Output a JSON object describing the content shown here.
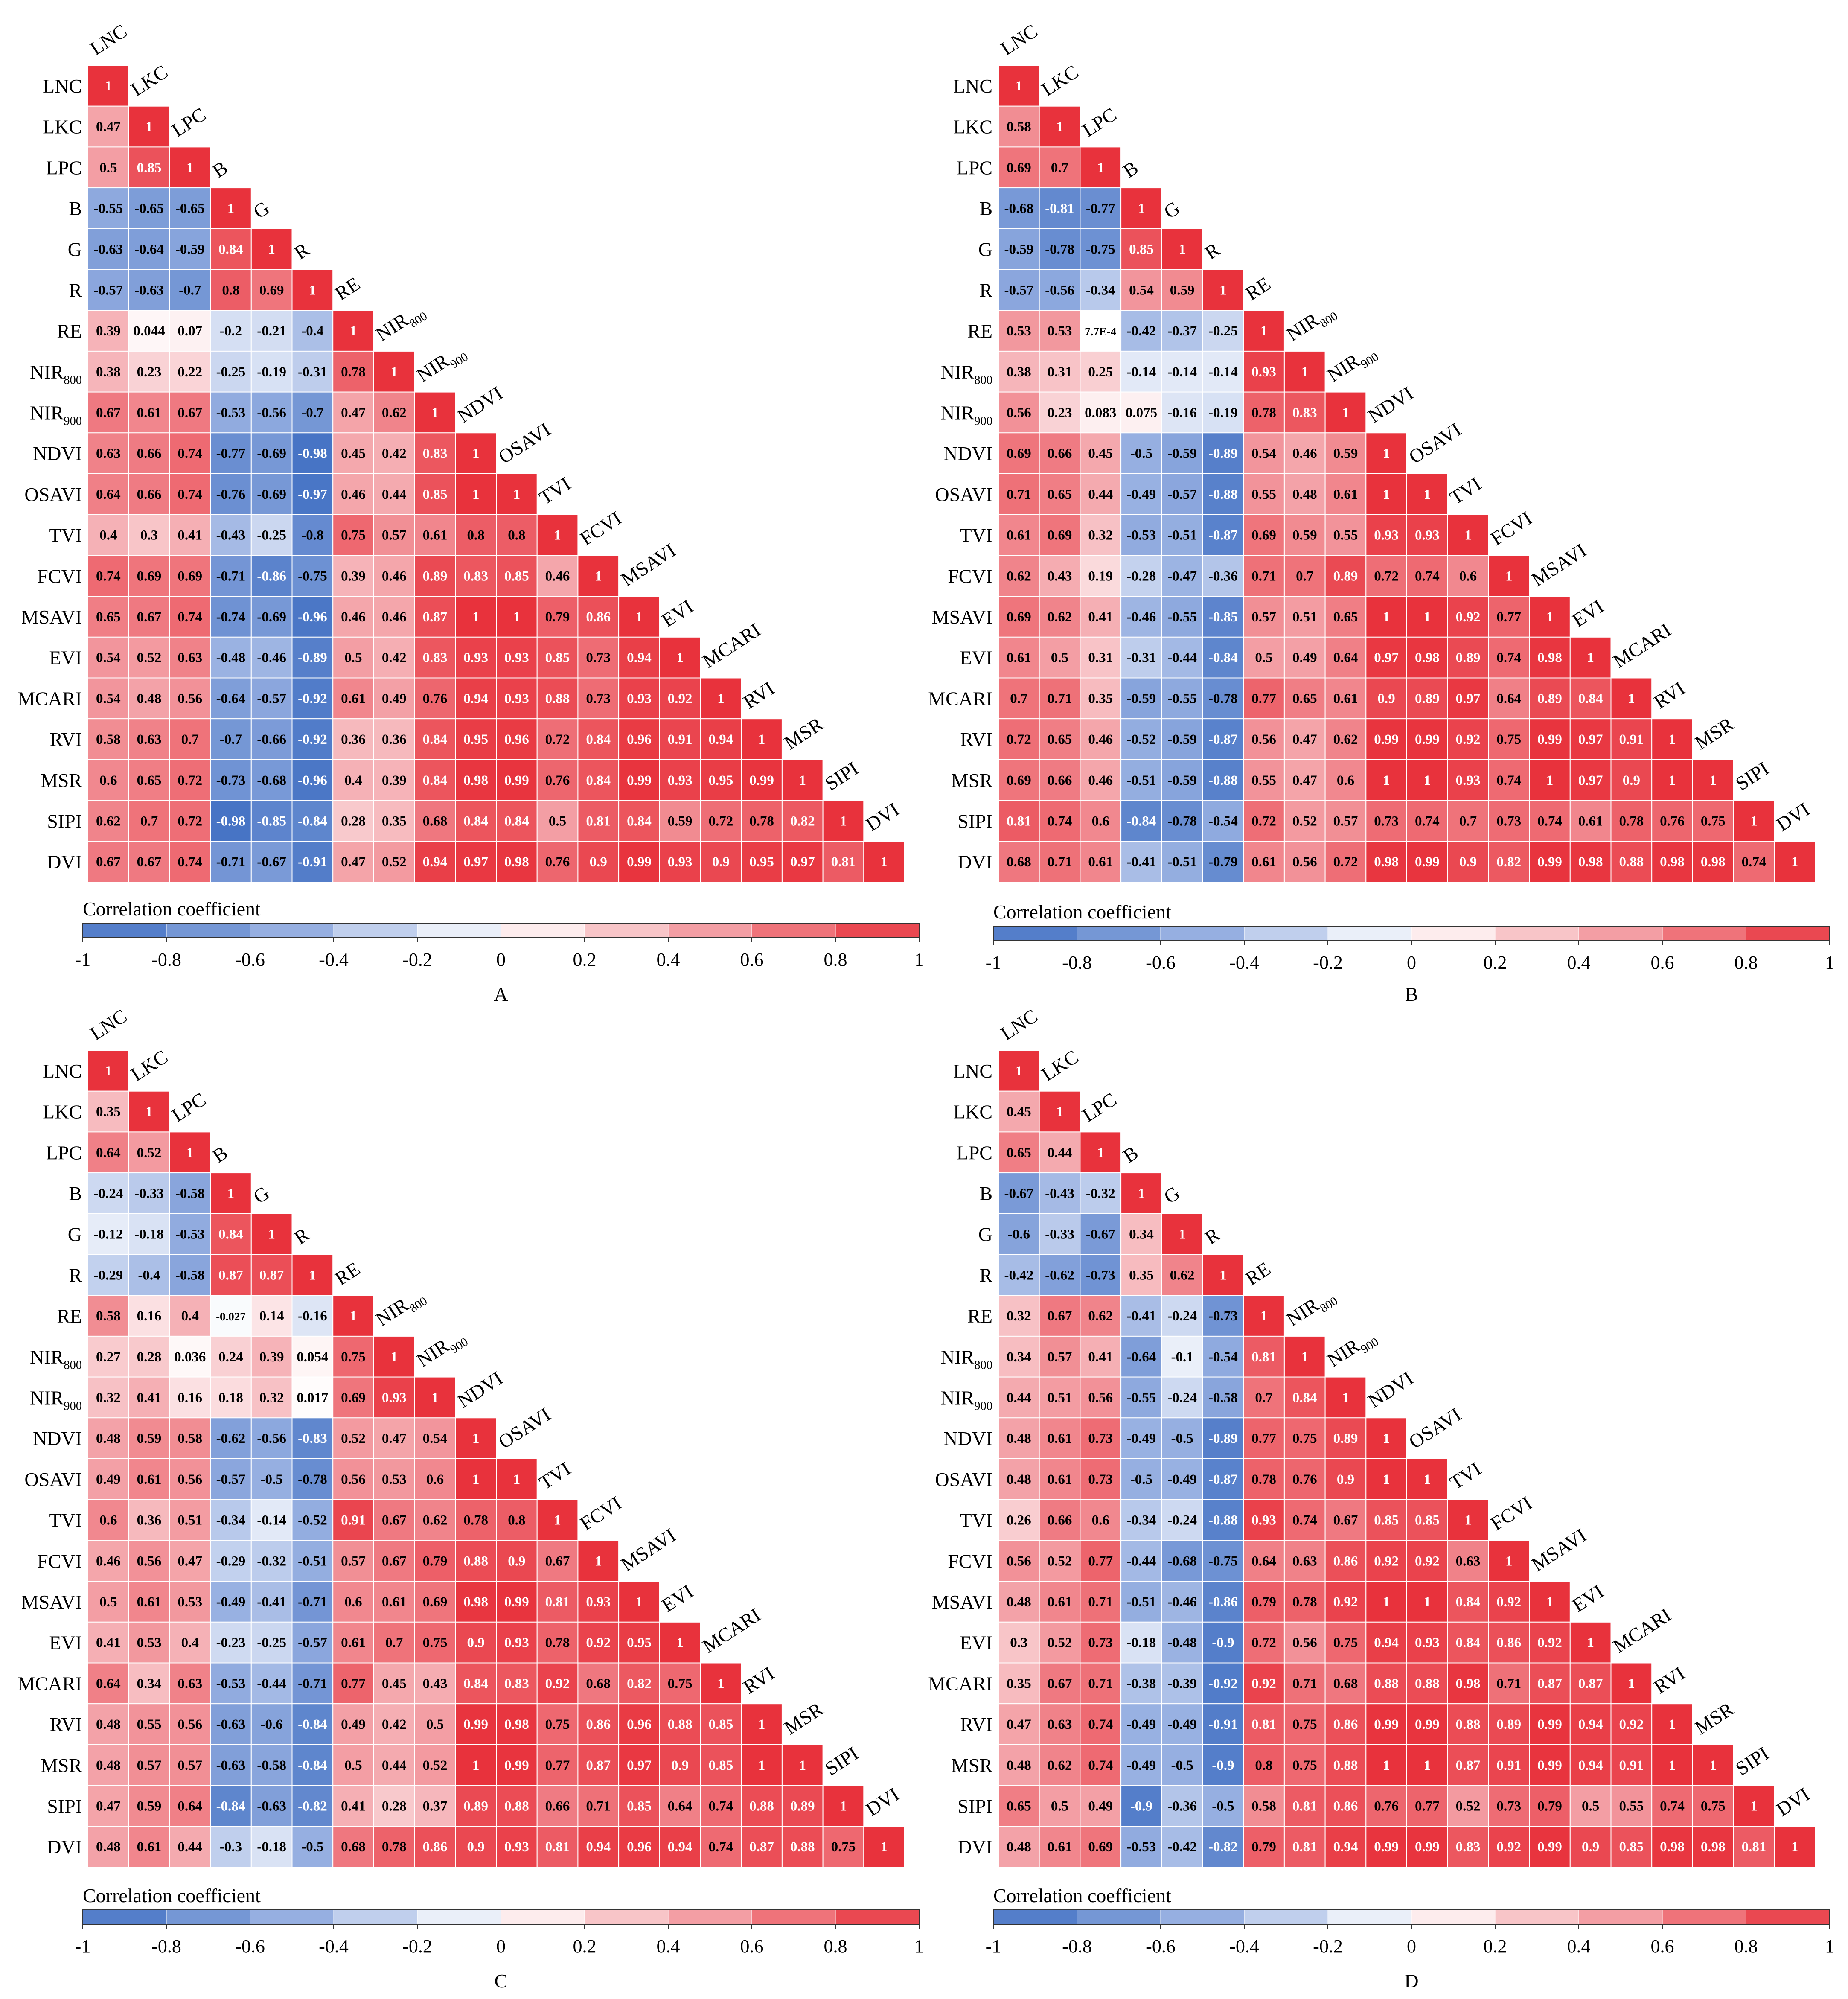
{
  "labels": [
    "LNC",
    "LKC",
    "LPC",
    "B",
    "G",
    "R",
    "RE",
    "NIR800",
    "NIR900",
    "NDVI",
    "OSAVI",
    "TVI",
    "FCVI",
    "MSAVI",
    "EVI",
    "MCARI",
    "RVI",
    "MSR",
    "SIPI",
    "DVI"
  ],
  "label_display": {
    "LNC": {
      "main": "LNC",
      "sub": ""
    },
    "LKC": {
      "main": "LKC",
      "sub": ""
    },
    "LPC": {
      "main": "LPC",
      "sub": ""
    },
    "B": {
      "main": "B",
      "sub": ""
    },
    "G": {
      "main": "G",
      "sub": ""
    },
    "R": {
      "main": "R",
      "sub": ""
    },
    "RE": {
      "main": "RE",
      "sub": ""
    },
    "NIR800": {
      "main": "NIR",
      "sub": "800"
    },
    "NIR900": {
      "main": "NIR",
      "sub": "900"
    },
    "NDVI": {
      "main": "NDVI",
      "sub": ""
    },
    "OSAVI": {
      "main": "OSAVI",
      "sub": ""
    },
    "TVI": {
      "main": "TVI",
      "sub": ""
    },
    "FCVI": {
      "main": "FCVI",
      "sub": ""
    },
    "MSAVI": {
      "main": "MSAVI",
      "sub": ""
    },
    "EVI": {
      "main": "EVI",
      "sub": ""
    },
    "MCARI": {
      "main": "MCARI",
      "sub": ""
    },
    "RVI": {
      "main": "RVI",
      "sub": ""
    },
    "MSR": {
      "main": "MSR",
      "sub": ""
    },
    "SIPI": {
      "main": "SIPI",
      "sub": ""
    },
    "DVI": {
      "main": "DVI",
      "sub": ""
    }
  },
  "colorbar": {
    "title": "Correlation coefficient",
    "ticks": [
      "-1",
      "-0.8",
      "-0.6",
      "-0.4",
      "-0.2",
      "0",
      "0.2",
      "0.4",
      "0.6",
      "0.8",
      "1"
    ],
    "colors": [
      "#4472c4",
      "#6b8fd4",
      "#92abdf",
      "#b8c9ea",
      "#dbe4f4",
      "#ffffff",
      "#fad4d7",
      "#f5aaaf",
      "#f17f87",
      "#ed555f",
      "#e8323c"
    ]
  },
  "chart_data": [
    {
      "type": "heatmap",
      "panel": "A",
      "rows": [
        [
          "1"
        ],
        [
          "0.47",
          "1"
        ],
        [
          "0.5",
          "0.85",
          "1"
        ],
        [
          "-0.55",
          "-0.65",
          "-0.65",
          "1"
        ],
        [
          "-0.63",
          "-0.64",
          "-0.59",
          "0.84",
          "1"
        ],
        [
          "-0.57",
          "-0.63",
          "-0.7",
          "0.8",
          "0.69",
          "1"
        ],
        [
          "0.39",
          "0.044",
          "0.07",
          "-0.2",
          "-0.21",
          "-0.4",
          "1"
        ],
        [
          "0.38",
          "0.23",
          "0.22",
          "-0.25",
          "-0.19",
          "-0.31",
          "0.78",
          "1"
        ],
        [
          "0.67",
          "0.61",
          "0.67",
          "-0.53",
          "-0.56",
          "-0.7",
          "0.47",
          "0.62",
          "1"
        ],
        [
          "0.63",
          "0.66",
          "0.74",
          "-0.77",
          "-0.69",
          "-0.98",
          "0.45",
          "0.42",
          "0.83",
          "1"
        ],
        [
          "0.64",
          "0.66",
          "0.74",
          "-0.76",
          "-0.69",
          "-0.97",
          "0.46",
          "0.44",
          "0.85",
          "1",
          "1"
        ],
        [
          "0.4",
          "0.3",
          "0.41",
          "-0.43",
          "-0.25",
          "-0.8",
          "0.75",
          "0.57",
          "0.61",
          "0.8",
          "0.8",
          "1"
        ],
        [
          "0.74",
          "0.69",
          "0.69",
          "-0.71",
          "-0.86",
          "-0.75",
          "0.39",
          "0.46",
          "0.89",
          "0.83",
          "0.85",
          "0.46",
          "1"
        ],
        [
          "0.65",
          "0.67",
          "0.74",
          "-0.74",
          "-0.69",
          "-0.96",
          "0.46",
          "0.46",
          "0.87",
          "1",
          "1",
          "0.79",
          "0.86",
          "1"
        ],
        [
          "0.54",
          "0.52",
          "0.63",
          "-0.48",
          "-0.46",
          "-0.89",
          "0.5",
          "0.42",
          "0.83",
          "0.93",
          "0.93",
          "0.85",
          "0.73",
          "0.94",
          "1"
        ],
        [
          "0.54",
          "0.48",
          "0.56",
          "-0.64",
          "-0.57",
          "-0.92",
          "0.61",
          "0.49",
          "0.76",
          "0.94",
          "0.93",
          "0.88",
          "0.73",
          "0.93",
          "0.92",
          "1"
        ],
        [
          "0.58",
          "0.63",
          "0.7",
          "-0.7",
          "-0.66",
          "-0.92",
          "0.36",
          "0.36",
          "0.84",
          "0.95",
          "0.96",
          "0.72",
          "0.84",
          "0.96",
          "0.91",
          "0.94",
          "1"
        ],
        [
          "0.6",
          "0.65",
          "0.72",
          "-0.73",
          "-0.68",
          "-0.96",
          "0.4",
          "0.39",
          "0.84",
          "0.98",
          "0.99",
          "0.76",
          "0.84",
          "0.99",
          "0.93",
          "0.95",
          "0.99",
          "1"
        ],
        [
          "0.62",
          "0.7",
          "0.72",
          "-0.98",
          "-0.85",
          "-0.84",
          "0.28",
          "0.35",
          "0.68",
          "0.84",
          "0.84",
          "0.5",
          "0.81",
          "0.84",
          "0.59",
          "0.72",
          "0.78",
          "0.82",
          "1"
        ],
        [
          "0.67",
          "0.67",
          "0.74",
          "-0.71",
          "-0.67",
          "-0.91",
          "0.47",
          "0.52",
          "0.94",
          "0.97",
          "0.98",
          "0.76",
          "0.9",
          "0.99",
          "0.93",
          "0.9",
          "0.95",
          "0.97",
          "0.81",
          "1"
        ]
      ]
    },
    {
      "type": "heatmap",
      "panel": "B",
      "rows": [
        [
          "1"
        ],
        [
          "0.58",
          "1"
        ],
        [
          "0.69",
          "0.7",
          "1"
        ],
        [
          "-0.68",
          "-0.81",
          "-0.77",
          "1"
        ],
        [
          "-0.59",
          "-0.78",
          "-0.75",
          "0.85",
          "1"
        ],
        [
          "-0.57",
          "-0.56",
          "-0.34",
          "0.54",
          "0.59",
          "1"
        ],
        [
          "0.53",
          "0.53",
          "7.7E-4",
          "-0.42",
          "-0.37",
          "-0.25",
          "1"
        ],
        [
          "0.38",
          "0.31",
          "0.25",
          "-0.14",
          "-0.14",
          "-0.14",
          "0.93",
          "1"
        ],
        [
          "0.56",
          "0.23",
          "0.083",
          "0.075",
          "-0.16",
          "-0.19",
          "0.78",
          "0.83",
          "1"
        ],
        [
          "0.69",
          "0.66",
          "0.45",
          "-0.5",
          "-0.59",
          "-0.89",
          "0.54",
          "0.46",
          "0.59",
          "1"
        ],
        [
          "0.71",
          "0.65",
          "0.44",
          "-0.49",
          "-0.57",
          "-0.88",
          "0.55",
          "0.48",
          "0.61",
          "1",
          "1"
        ],
        [
          "0.61",
          "0.69",
          "0.32",
          "-0.53",
          "-0.51",
          "-0.87",
          "0.69",
          "0.59",
          "0.55",
          "0.93",
          "0.93",
          "1"
        ],
        [
          "0.62",
          "0.43",
          "0.19",
          "-0.28",
          "-0.47",
          "-0.36",
          "0.71",
          "0.7",
          "0.89",
          "0.72",
          "0.74",
          "0.6",
          "1"
        ],
        [
          "0.69",
          "0.62",
          "0.41",
          "-0.46",
          "-0.55",
          "-0.85",
          "0.57",
          "0.51",
          "0.65",
          "1",
          "1",
          "0.92",
          "0.77",
          "1"
        ],
        [
          "0.61",
          "0.5",
          "0.31",
          "-0.31",
          "-0.44",
          "-0.84",
          "0.5",
          "0.49",
          "0.64",
          "0.97",
          "0.98",
          "0.89",
          "0.74",
          "0.98",
          "1"
        ],
        [
          "0.7",
          "0.71",
          "0.35",
          "-0.59",
          "-0.55",
          "-0.78",
          "0.77",
          "0.65",
          "0.61",
          "0.9",
          "0.89",
          "0.97",
          "0.64",
          "0.89",
          "0.84",
          "1"
        ],
        [
          "0.72",
          "0.65",
          "0.46",
          "-0.52",
          "-0.59",
          "-0.87",
          "0.56",
          "0.47",
          "0.62",
          "0.99",
          "0.99",
          "0.92",
          "0.75",
          "0.99",
          "0.97",
          "0.91",
          "1"
        ],
        [
          "0.69",
          "0.66",
          "0.46",
          "-0.51",
          "-0.59",
          "-0.88",
          "0.55",
          "0.47",
          "0.6",
          "1",
          "1",
          "0.93",
          "0.74",
          "1",
          "0.97",
          "0.9",
          "1",
          "1"
        ],
        [
          "0.81",
          "0.74",
          "0.6",
          "-0.84",
          "-0.78",
          "-0.54",
          "0.72",
          "0.52",
          "0.57",
          "0.73",
          "0.74",
          "0.7",
          "0.73",
          "0.74",
          "0.61",
          "0.78",
          "0.76",
          "0.75",
          "1"
        ],
        [
          "0.68",
          "0.71",
          "0.61",
          "-0.41",
          "-0.51",
          "-0.79",
          "0.61",
          "0.56",
          "0.72",
          "0.98",
          "0.99",
          "0.9",
          "0.82",
          "0.99",
          "0.98",
          "0.88",
          "0.98",
          "0.98",
          "0.74",
          "1"
        ]
      ]
    },
    {
      "type": "heatmap",
      "panel": "C",
      "rows": [
        [
          "1"
        ],
        [
          "0.35",
          "1"
        ],
        [
          "0.64",
          "0.52",
          "1"
        ],
        [
          "-0.24",
          "-0.33",
          "-0.58",
          "1"
        ],
        [
          "-0.12",
          "-0.18",
          "-0.53",
          "0.84",
          "1"
        ],
        [
          "-0.29",
          "-0.4",
          "-0.58",
          "0.87",
          "0.87",
          "1"
        ],
        [
          "0.58",
          "0.16",
          "0.4",
          "-0.027",
          "0.14",
          "-0.16",
          "1"
        ],
        [
          "0.27",
          "0.28",
          "0.036",
          "0.24",
          "0.39",
          "0.054",
          "0.75",
          "1"
        ],
        [
          "0.32",
          "0.41",
          "0.16",
          "0.18",
          "0.32",
          "0.017",
          "0.69",
          "0.93",
          "1"
        ],
        [
          "0.48",
          "0.59",
          "0.58",
          "-0.62",
          "-0.56",
          "-0.83",
          "0.52",
          "0.47",
          "0.54",
          "1"
        ],
        [
          "0.49",
          "0.61",
          "0.56",
          "-0.57",
          "-0.5",
          "-0.78",
          "0.56",
          "0.53",
          "0.6",
          "1",
          "1"
        ],
        [
          "0.6",
          "0.36",
          "0.51",
          "-0.34",
          "-0.14",
          "-0.52",
          "0.91",
          "0.67",
          "0.62",
          "0.78",
          "0.8",
          "1"
        ],
        [
          "0.46",
          "0.56",
          "0.47",
          "-0.29",
          "-0.32",
          "-0.51",
          "0.57",
          "0.67",
          "0.79",
          "0.88",
          "0.9",
          "0.67",
          "1"
        ],
        [
          "0.5",
          "0.61",
          "0.53",
          "-0.49",
          "-0.41",
          "-0.71",
          "0.6",
          "0.61",
          "0.69",
          "0.98",
          "0.99",
          "0.81",
          "0.93",
          "1"
        ],
        [
          "0.41",
          "0.53",
          "0.4",
          "-0.23",
          "-0.25",
          "-0.57",
          "0.61",
          "0.7",
          "0.75",
          "0.9",
          "0.93",
          "0.78",
          "0.92",
          "0.95",
          "1"
        ],
        [
          "0.64",
          "0.34",
          "0.63",
          "-0.53",
          "-0.44",
          "-0.71",
          "0.77",
          "0.45",
          "0.43",
          "0.84",
          "0.83",
          "0.92",
          "0.68",
          "0.82",
          "0.75",
          "1"
        ],
        [
          "0.48",
          "0.55",
          "0.56",
          "-0.63",
          "-0.6",
          "-0.84",
          "0.49",
          "0.42",
          "0.5",
          "0.99",
          "0.98",
          "0.75",
          "0.86",
          "0.96",
          "0.88",
          "0.85",
          "1"
        ],
        [
          "0.48",
          "0.57",
          "0.57",
          "-0.63",
          "-0.58",
          "-0.84",
          "0.5",
          "0.44",
          "0.52",
          "1",
          "0.99",
          "0.77",
          "0.87",
          "0.97",
          "0.9",
          "0.85",
          "1",
          "1"
        ],
        [
          "0.47",
          "0.59",
          "0.64",
          "-0.84",
          "-0.63",
          "-0.82",
          "0.41",
          "0.28",
          "0.37",
          "0.89",
          "0.88",
          "0.66",
          "0.71",
          "0.85",
          "0.64",
          "0.74",
          "0.88",
          "0.89",
          "1"
        ],
        [
          "0.48",
          "0.61",
          "0.44",
          "-0.3",
          "-0.18",
          "-0.5",
          "0.68",
          "0.78",
          "0.86",
          "0.9",
          "0.93",
          "0.81",
          "0.94",
          "0.96",
          "0.94",
          "0.74",
          "0.87",
          "0.88",
          "0.75",
          "1"
        ]
      ]
    },
    {
      "type": "heatmap",
      "panel": "D",
      "rows": [
        [
          "1"
        ],
        [
          "0.45",
          "1"
        ],
        [
          "0.65",
          "0.44",
          "1"
        ],
        [
          "-0.67",
          "-0.43",
          "-0.32",
          "1"
        ],
        [
          "-0.6",
          "-0.33",
          "-0.67",
          "0.34",
          "1"
        ],
        [
          "-0.42",
          "-0.62",
          "-0.73",
          "0.35",
          "0.62",
          "1"
        ],
        [
          "0.32",
          "0.67",
          "0.62",
          "-0.41",
          "-0.24",
          "-0.73",
          "1"
        ],
        [
          "0.34",
          "0.57",
          "0.41",
          "-0.64",
          "-0.1",
          "-0.54",
          "0.81",
          "1"
        ],
        [
          "0.44",
          "0.51",
          "0.56",
          "-0.55",
          "-0.24",
          "-0.58",
          "0.7",
          "0.84",
          "1"
        ],
        [
          "0.48",
          "0.61",
          "0.73",
          "-0.49",
          "-0.5",
          "-0.89",
          "0.77",
          "0.75",
          "0.89",
          "1"
        ],
        [
          "0.48",
          "0.61",
          "0.73",
          "-0.5",
          "-0.49",
          "-0.87",
          "0.78",
          "0.76",
          "0.9",
          "1",
          "1"
        ],
        [
          "0.26",
          "0.66",
          "0.6",
          "-0.34",
          "-0.24",
          "-0.88",
          "0.93",
          "0.74",
          "0.67",
          "0.85",
          "0.85",
          "1"
        ],
        [
          "0.56",
          "0.52",
          "0.77",
          "-0.44",
          "-0.68",
          "-0.75",
          "0.64",
          "0.63",
          "0.86",
          "0.92",
          "0.92",
          "0.63",
          "1"
        ],
        [
          "0.48",
          "0.61",
          "0.71",
          "-0.51",
          "-0.46",
          "-0.86",
          "0.79",
          "0.78",
          "0.92",
          "1",
          "1",
          "0.84",
          "0.92",
          "1"
        ],
        [
          "0.3",
          "0.52",
          "0.73",
          "-0.18",
          "-0.48",
          "-0.9",
          "0.72",
          "0.56",
          "0.75",
          "0.94",
          "0.93",
          "0.84",
          "0.86",
          "0.92",
          "1"
        ],
        [
          "0.35",
          "0.67",
          "0.71",
          "-0.38",
          "-0.39",
          "-0.92",
          "0.92",
          "0.71",
          "0.68",
          "0.88",
          "0.88",
          "0.98",
          "0.71",
          "0.87",
          "0.87",
          "1"
        ],
        [
          "0.47",
          "0.63",
          "0.74",
          "-0.49",
          "-0.49",
          "-0.91",
          "0.81",
          "0.75",
          "0.86",
          "0.99",
          "0.99",
          "0.88",
          "0.89",
          "0.99",
          "0.94",
          "0.92",
          "1"
        ],
        [
          "0.48",
          "0.62",
          "0.74",
          "-0.49",
          "-0.5",
          "-0.9",
          "0.8",
          "0.75",
          "0.88",
          "1",
          "1",
          "0.87",
          "0.91",
          "0.99",
          "0.94",
          "0.91",
          "1",
          "1"
        ],
        [
          "0.65",
          "0.5",
          "0.49",
          "-0.9",
          "-0.36",
          "-0.5",
          "0.58",
          "0.81",
          "0.86",
          "0.76",
          "0.77",
          "0.52",
          "0.73",
          "0.79",
          "0.5",
          "0.55",
          "0.74",
          "0.75",
          "1"
        ],
        [
          "0.48",
          "0.61",
          "0.69",
          "-0.53",
          "-0.42",
          "-0.82",
          "0.79",
          "0.81",
          "0.94",
          "0.99",
          "0.99",
          "0.83",
          "0.92",
          "0.99",
          "0.9",
          "0.85",
          "0.98",
          "0.98",
          "0.81",
          "1"
        ]
      ]
    }
  ]
}
